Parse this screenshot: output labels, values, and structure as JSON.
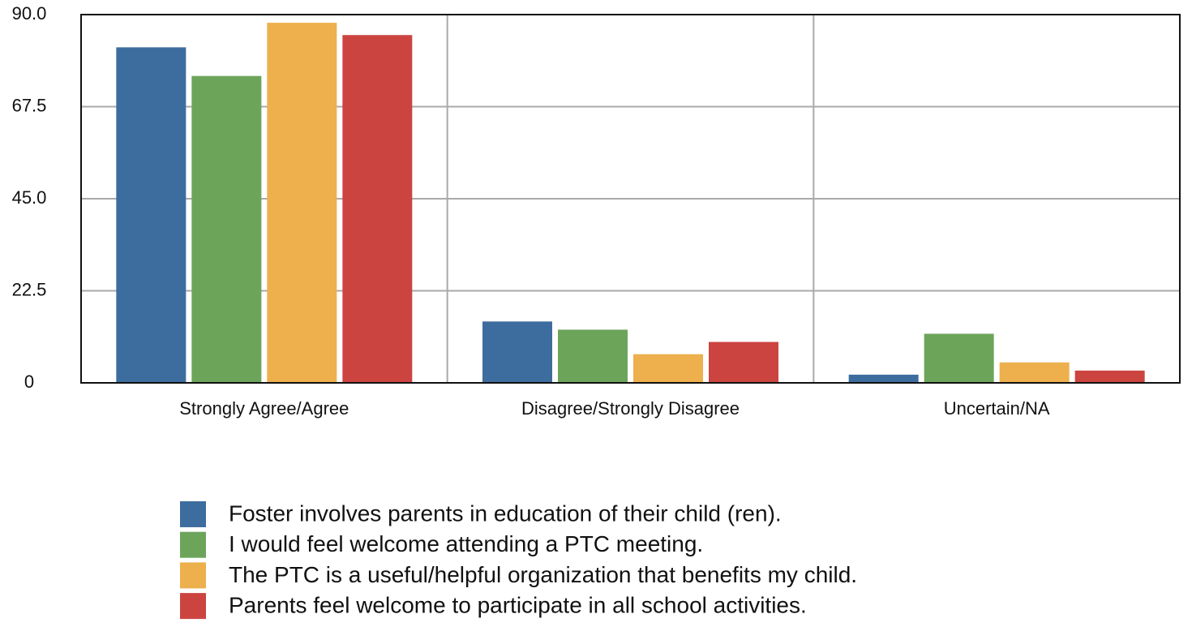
{
  "chart_data": {
    "type": "bar",
    "categories": [
      "Strongly Agree/Agree",
      "Disagree/Strongly Disagree",
      "Uncertain/NA"
    ],
    "series": [
      {
        "name": "Foster involves parents in education of their child (ren).",
        "color": "#3d6d9e",
        "values": [
          82,
          15,
          2
        ]
      },
      {
        "name": "I would feel welcome attending a PTC meeting.",
        "color": "#6ca55a",
        "values": [
          75,
          13,
          12
        ]
      },
      {
        "name": "The PTC is a useful/helpful organization that benefits my child.",
        "color": "#edb04c",
        "values": [
          88,
          7,
          5
        ]
      },
      {
        "name": "Parents feel welcome to participate in all school activities.",
        "color": "#cc4440",
        "values": [
          85,
          10,
          3
        ]
      }
    ],
    "ylim": [
      0,
      90
    ],
    "yticks": [
      0,
      22.5,
      {
        "value": 45,
        "label": "45.0"
      },
      67.5,
      {
        "value": 90,
        "label": "90.0"
      }
    ],
    "grid": true
  }
}
